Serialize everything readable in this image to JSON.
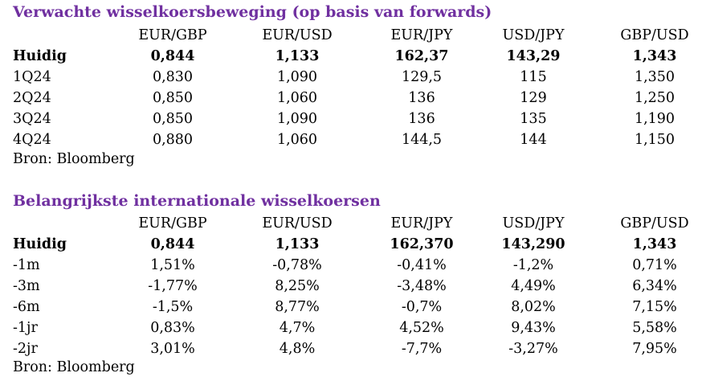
{
  "section1": {
    "title": "Verwachte wisselkoersbeweging (op basis van forwards)",
    "headers": [
      "EUR/GBP",
      "EUR/USD",
      "EUR/JPY",
      "USD/JPY",
      "GBP/USD"
    ],
    "rows": [
      {
        "label": "Huidig",
        "values": [
          "0,844",
          "1,133",
          "162,37",
          "143,29",
          "1,343"
        ]
      },
      {
        "label": "1Q24",
        "values": [
          "0,830",
          "1,090",
          "129,5",
          "115",
          "1,350"
        ]
      },
      {
        "label": "2Q24",
        "values": [
          "0,850",
          "1,060",
          "136",
          "129",
          "1,250"
        ]
      },
      {
        "label": "3Q24",
        "values": [
          "0,850",
          "1,090",
          "136",
          "135",
          "1,190"
        ]
      },
      {
        "label": "4Q24",
        "values": [
          "0,880",
          "1,060",
          "144,5",
          "144",
          "1,150"
        ]
      }
    ],
    "source": "Bron: Bloomberg"
  },
  "section2": {
    "title": "Belangrijkste internationale wisselkoersen",
    "headers": [
      "EUR/GBP",
      "EUR/USD",
      "EUR/JPY",
      "USD/JPY",
      "GBP/USD"
    ],
    "rows": [
      {
        "label": "Huidig",
        "values": [
          "0,844",
          "1,133",
          "162,370",
          "143,290",
          "1,343"
        ]
      },
      {
        "label": "-1m",
        "values": [
          "1,51%",
          "-0,78%",
          "-0,41%",
          "-1,2%",
          "0,71%"
        ]
      },
      {
        "label": "-3m",
        "values": [
          "-1,77%",
          "8,25%",
          "-3,48%",
          "4,49%",
          "6,34%"
        ]
      },
      {
        "label": "-6m",
        "values": [
          "-1,5%",
          "8,77%",
          "-0,7%",
          "8,02%",
          "7,15%"
        ]
      },
      {
        "label": "-1jr",
        "values": [
          "0,83%",
          "4,7%",
          "4,52%",
          "9,43%",
          "5,58%"
        ]
      },
      {
        "label": "-2jr",
        "values": [
          "3,01%",
          "4,8%",
          "-7,7%",
          "-3,27%",
          "7,95%"
        ]
      }
    ],
    "source": "Bron: Bloomberg"
  }
}
